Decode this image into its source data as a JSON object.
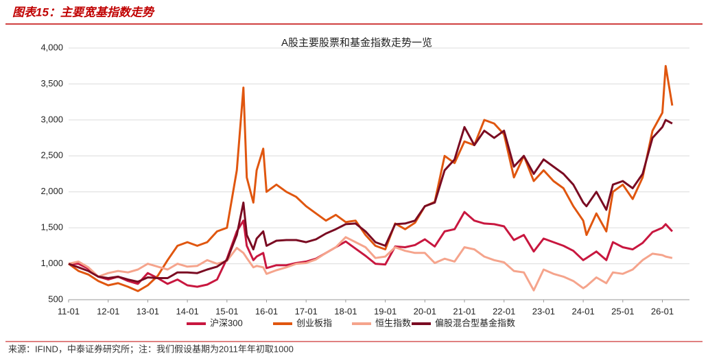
{
  "header": "图表15：主要宽基指数走势",
  "footer": "来源：IFIND，中泰证券研究所；注：我们假设基期为2011年年初取1000",
  "chart_data": {
    "type": "line",
    "title": "A股主要股票和基金指数走势一览",
    "x": [
      "11-01",
      "11-04",
      "11-07",
      "11-10",
      "12-01",
      "12-04",
      "12-07",
      "12-10",
      "13-01",
      "13-04",
      "13-07",
      "13-10",
      "14-01",
      "14-04",
      "14-07",
      "14-10",
      "15-01",
      "15-04",
      "15-06",
      "15-07",
      "15-09",
      "15-10",
      "15-12",
      "16-01",
      "16-04",
      "16-07",
      "16-10",
      "17-01",
      "17-04",
      "17-07",
      "17-10",
      "18-01",
      "18-04",
      "18-07",
      "18-10",
      "19-01",
      "19-04",
      "19-07",
      "19-10",
      "20-01",
      "20-04",
      "20-07",
      "20-10",
      "21-01",
      "21-04",
      "21-07",
      "21-10",
      "22-01",
      "22-04",
      "22-07",
      "22-10",
      "23-01",
      "23-04",
      "23-07",
      "23-10",
      "24-01",
      "24-02",
      "24-05",
      "24-08",
      "24-10",
      "25-01",
      "25-04",
      "25-07",
      "25-10",
      "26-01",
      "26-02",
      "26-04"
    ],
    "series": [
      {
        "name": "沪深300",
        "color": "#c8173f",
        "values": [
          1000,
          1000,
          930,
          820,
          780,
          820,
          760,
          720,
          870,
          800,
          720,
          780,
          700,
          680,
          710,
          780,
          1070,
          1450,
          1600,
          1250,
          1050,
          1100,
          1150,
          940,
          980,
          980,
          1010,
          1030,
          1070,
          1150,
          1230,
          1310,
          1210,
          1110,
          1000,
          990,
          1240,
          1230,
          1260,
          1340,
          1240,
          1450,
          1480,
          1720,
          1600,
          1560,
          1550,
          1520,
          1330,
          1400,
          1170,
          1350,
          1300,
          1250,
          1180,
          1050,
          1080,
          1170,
          1050,
          1300,
          1230,
          1200,
          1290,
          1440,
          1500,
          1550,
          1450
        ]
      },
      {
        "name": "创业板指",
        "color": "#e0560f",
        "values": [
          1000,
          900,
          850,
          760,
          700,
          730,
          680,
          620,
          700,
          830,
          1050,
          1250,
          1300,
          1250,
          1300,
          1450,
          1500,
          2300,
          3450,
          2200,
          1850,
          2300,
          2600,
          2000,
          2100,
          2000,
          1930,
          1800,
          1700,
          1600,
          1680,
          1580,
          1600,
          1400,
          1250,
          1200,
          1560,
          1480,
          1570,
          1800,
          1860,
          2500,
          2400,
          2700,
          2650,
          3000,
          2950,
          2800,
          2200,
          2500,
          2150,
          2300,
          2150,
          2050,
          1800,
          1600,
          1400,
          1700,
          1450,
          2000,
          2100,
          1900,
          2200,
          2850,
          3100,
          3750,
          3200
        ]
      },
      {
        "name": "恒生指数",
        "color": "#f5a48c",
        "values": [
          1000,
          1030,
          950,
          820,
          870,
          900,
          880,
          920,
          1000,
          960,
          920,
          1000,
          960,
          970,
          1050,
          1000,
          1040,
          1220,
          1150,
          1080,
          950,
          970,
          950,
          860,
          910,
          950,
          1000,
          1010,
          1060,
          1150,
          1230,
          1370,
          1300,
          1230,
          1080,
          1100,
          1230,
          1180,
          1150,
          1150,
          1010,
          1070,
          1030,
          1230,
          1200,
          1100,
          1050,
          1020,
          900,
          880,
          630,
          920,
          860,
          820,
          760,
          660,
          690,
          810,
          730,
          880,
          860,
          920,
          1050,
          1140,
          1120,
          1100,
          1080
        ]
      },
      {
        "name": "偏股混合型基金指数",
        "color": "#7a0b22",
        "values": [
          1000,
          950,
          900,
          820,
          800,
          820,
          780,
          750,
          810,
          800,
          800,
          880,
          880,
          870,
          920,
          960,
          1050,
          1400,
          1850,
          1400,
          1200,
          1350,
          1450,
          1250,
          1320,
          1330,
          1330,
          1300,
          1340,
          1420,
          1480,
          1550,
          1560,
          1450,
          1300,
          1250,
          1550,
          1560,
          1600,
          1800,
          1850,
          2300,
          2450,
          2900,
          2650,
          2850,
          2750,
          2850,
          2350,
          2500,
          2250,
          2450,
          2350,
          2250,
          2100,
          1850,
          1800,
          2000,
          1750,
          2100,
          2150,
          2050,
          2250,
          2750,
          2900,
          3000,
          2950
        ]
      }
    ],
    "ylim": [
      500,
      4000
    ],
    "yticks": [
      500,
      {
        "value": 1000,
        "label": "1,000"
      },
      {
        "value": 1500,
        "label": "1,500"
      },
      {
        "value": 2000,
        "label": "2,000"
      },
      {
        "value": 2500,
        "label": "2,500"
      },
      {
        "value": 3000,
        "label": "3,000"
      },
      {
        "value": 3500,
        "label": "3,500"
      },
      {
        "value": 4000,
        "label": "4,000"
      }
    ],
    "xticks": [
      "11-01",
      "12-01",
      "13-01",
      "14-01",
      "15-01",
      "16-01",
      "17-01",
      "18-01",
      "19-01",
      "20-01",
      "21-01",
      "22-01",
      "23-01",
      "24-01",
      "25-01",
      "26-01"
    ],
    "grid": true,
    "legend": "bottom"
  }
}
